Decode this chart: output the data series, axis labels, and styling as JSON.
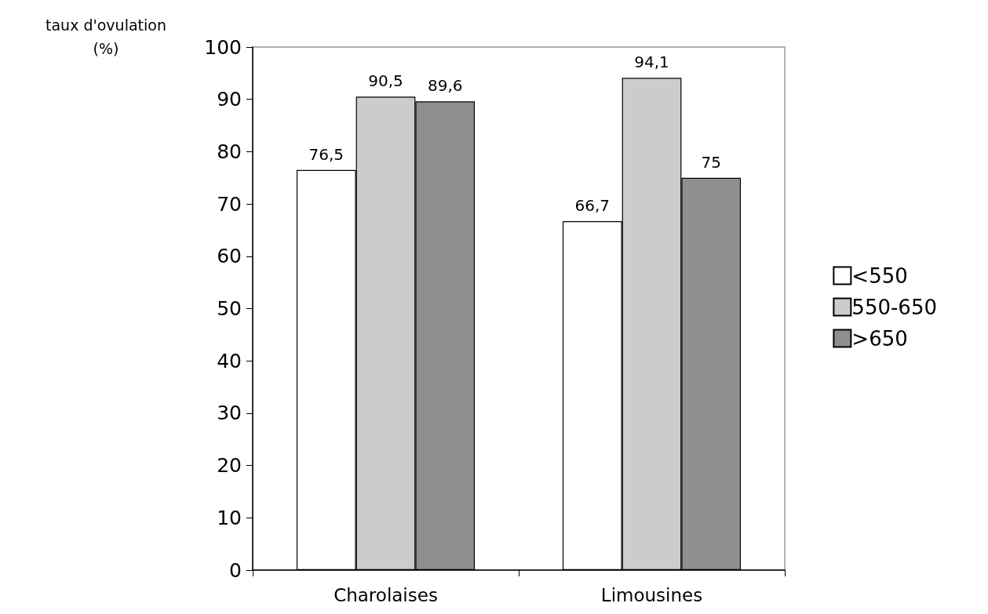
{
  "chart_data": {
    "type": "bar",
    "ylabel": "taux d'ovulation\n(%)",
    "categories": [
      "Charolaises",
      "Limousines"
    ],
    "series": [
      {
        "name": "<550",
        "color": "#ffffff",
        "values": [
          76.5,
          66.7
        ],
        "value_labels": [
          "76,5",
          "66,7"
        ]
      },
      {
        "name": "550-650",
        "color": "#cccccc",
        "values": [
          90.5,
          94.1
        ],
        "value_labels": [
          "90,5",
          "94,1"
        ]
      },
      {
        "name": ">650",
        "color": "#8f8f8f",
        "values": [
          89.6,
          75
        ],
        "value_labels": [
          "89,6",
          "75"
        ]
      }
    ],
    "ylim": [
      0,
      100
    ],
    "yticks": [
      0,
      10,
      20,
      30,
      40,
      50,
      60,
      70,
      80,
      90,
      100
    ],
    "grid": false,
    "legend": "right"
  }
}
